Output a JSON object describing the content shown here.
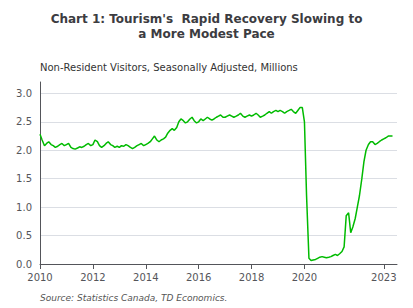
{
  "chart_data": {
    "type": "line",
    "title": "Chart 1: Tourism's  Rapid Recovery Slowing to\na More Modest Pace",
    "ylabel": "Non-Resident Visitors, Seasonally Adjusted, Millions",
    "annotations": [
      "Source: Statistics Canada, TD Economics."
    ],
    "color": "#00BB00",
    "grid": true,
    "xlim": [
      2010.0,
      2023.5
    ],
    "xticks": [
      2010,
      2012,
      2014,
      2016,
      2018,
      2020,
      2023
    ],
    "ylim": [
      0,
      3.2
    ],
    "yticks": [
      {
        "value": 0,
        "label": "0.0"
      },
      0.5,
      {
        "value": 1,
        "label": "1.0"
      },
      1.5,
      {
        "value": 2,
        "label": "2.0"
      },
      2.5,
      {
        "value": 3,
        "label": "3.0"
      }
    ],
    "x": [
      2010.0,
      2010.08,
      2010.17,
      2010.25,
      2010.33,
      2010.42,
      2010.5,
      2010.58,
      2010.67,
      2010.75,
      2010.83,
      2010.92,
      2011.0,
      2011.08,
      2011.17,
      2011.25,
      2011.33,
      2011.42,
      2011.5,
      2011.58,
      2011.67,
      2011.75,
      2011.83,
      2011.92,
      2012.0,
      2012.08,
      2012.17,
      2012.25,
      2012.33,
      2012.42,
      2012.5,
      2012.58,
      2012.67,
      2012.75,
      2012.83,
      2012.92,
      2013.0,
      2013.08,
      2013.17,
      2013.25,
      2013.33,
      2013.42,
      2013.5,
      2013.58,
      2013.67,
      2013.75,
      2013.83,
      2013.92,
      2014.0,
      2014.08,
      2014.17,
      2014.25,
      2014.33,
      2014.42,
      2014.5,
      2014.58,
      2014.67,
      2014.75,
      2014.83,
      2014.92,
      2015.0,
      2015.08,
      2015.17,
      2015.25,
      2015.33,
      2015.42,
      2015.5,
      2015.58,
      2015.67,
      2015.75,
      2015.83,
      2015.92,
      2016.0,
      2016.08,
      2016.17,
      2016.25,
      2016.33,
      2016.42,
      2016.5,
      2016.58,
      2016.67,
      2016.75,
      2016.83,
      2016.92,
      2017.0,
      2017.08,
      2017.17,
      2017.25,
      2017.33,
      2017.42,
      2017.5,
      2017.58,
      2017.67,
      2017.75,
      2017.83,
      2017.92,
      2018.0,
      2018.08,
      2018.17,
      2018.25,
      2018.33,
      2018.42,
      2018.5,
      2018.58,
      2018.67,
      2018.75,
      2018.83,
      2018.92,
      2019.0,
      2019.08,
      2019.17,
      2019.25,
      2019.33,
      2019.42,
      2019.5,
      2019.58,
      2019.67,
      2019.75,
      2019.83,
      2019.92,
      2020.0,
      2020.08,
      2020.17,
      2020.25,
      2020.33,
      2020.42,
      2020.5,
      2020.58,
      2020.67,
      2020.75,
      2020.83,
      2020.92,
      2021.0,
      2021.08,
      2021.17,
      2021.25,
      2021.33,
      2021.42,
      2021.5,
      2021.58,
      2021.67,
      2021.75,
      2021.83,
      2021.92,
      2022.0,
      2022.08,
      2022.17,
      2022.25,
      2022.33,
      2022.42,
      2022.5,
      2022.58,
      2022.67,
      2022.75,
      2022.83,
      2022.92,
      2023.0,
      2023.08,
      2023.17,
      2023.33
    ],
    "values": [
      2.28,
      2.18,
      2.08,
      2.12,
      2.15,
      2.1,
      2.08,
      2.05,
      2.07,
      2.1,
      2.12,
      2.08,
      2.1,
      2.12,
      2.05,
      2.03,
      2.02,
      2.04,
      2.06,
      2.05,
      2.07,
      2.1,
      2.12,
      2.08,
      2.1,
      2.18,
      2.15,
      2.08,
      2.05,
      2.08,
      2.12,
      2.15,
      2.1,
      2.08,
      2.05,
      2.07,
      2.05,
      2.08,
      2.07,
      2.1,
      2.08,
      2.05,
      2.03,
      2.05,
      2.08,
      2.1,
      2.12,
      2.08,
      2.1,
      2.12,
      2.15,
      2.2,
      2.25,
      2.18,
      2.15,
      2.18,
      2.2,
      2.23,
      2.3,
      2.35,
      2.38,
      2.35,
      2.4,
      2.5,
      2.55,
      2.52,
      2.48,
      2.5,
      2.55,
      2.58,
      2.52,
      2.48,
      2.5,
      2.55,
      2.52,
      2.55,
      2.58,
      2.55,
      2.53,
      2.55,
      2.58,
      2.6,
      2.62,
      2.58,
      2.58,
      2.6,
      2.62,
      2.6,
      2.58,
      2.6,
      2.62,
      2.65,
      2.6,
      2.58,
      2.6,
      2.62,
      2.6,
      2.62,
      2.65,
      2.62,
      2.58,
      2.6,
      2.62,
      2.65,
      2.68,
      2.65,
      2.68,
      2.7,
      2.68,
      2.7,
      2.68,
      2.65,
      2.68,
      2.7,
      2.72,
      2.68,
      2.65,
      2.7,
      2.75,
      2.75,
      2.5,
      1.2,
      0.1,
      0.06,
      0.07,
      0.08,
      0.1,
      0.12,
      0.13,
      0.12,
      0.11,
      0.12,
      0.13,
      0.15,
      0.17,
      0.15,
      0.18,
      0.22,
      0.3,
      0.85,
      0.9,
      0.55,
      0.65,
      0.8,
      1.0,
      1.2,
      1.5,
      1.8,
      2.0,
      2.1,
      2.15,
      2.15,
      2.1,
      2.12,
      2.15,
      2.18,
      2.2,
      2.22,
      2.25,
      2.25
    ]
  }
}
